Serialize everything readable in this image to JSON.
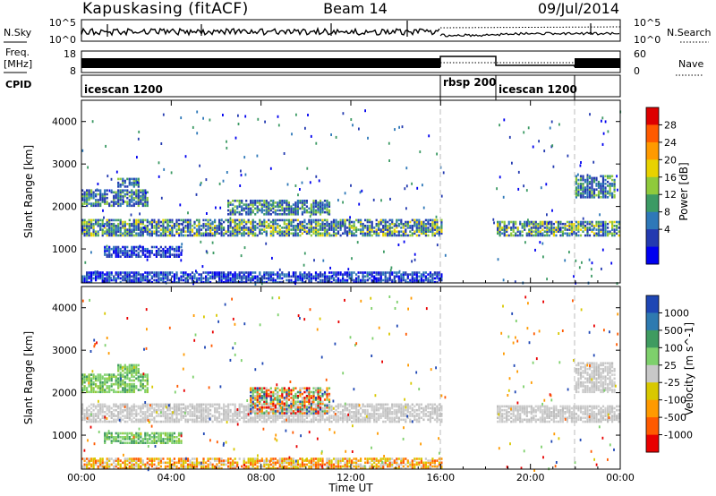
{
  "header": {
    "station": "Kapuskasing (fitACF)",
    "beam": "Beam 14",
    "date": "09/Jul/2014"
  },
  "noise_panel": {
    "left_label": "N.Sky",
    "right_label": "N.Search",
    "left_ticks": [
      "10^5",
      "10^0"
    ],
    "right_ticks": [
      "10^5",
      "10^0"
    ]
  },
  "freq_panel": {
    "left_label_line1": "Freq.",
    "left_label_line2": "[MHz]",
    "left_ticks": [
      "18",
      "8"
    ],
    "right_label": "Nave",
    "right_ticks": [
      "60",
      "0"
    ]
  },
  "cpid_panel": {
    "label": "CPID",
    "segments": [
      {
        "name": "icescan 1200",
        "start_hour": 0,
        "end_hour": 16
      },
      {
        "name": "rbsp 200",
        "start_hour": 16,
        "end_hour": 18.5
      },
      {
        "name": "icescan 1200",
        "start_hour": 18.5,
        "end_hour": 21.8
      }
    ]
  },
  "time_axis": {
    "label": "Time UT",
    "ticks": [
      "00:00",
      "04:00",
      "08:00",
      "12:00",
      "16:00",
      "20:00",
      "00:00"
    ]
  },
  "power_colorbar": {
    "label": "Power [dB]",
    "ticks": [
      "28",
      "24",
      "20",
      "16",
      "12",
      "8",
      "4"
    ],
    "colors": [
      "#dd0000",
      "#ff5a00",
      "#ff9a00",
      "#e8d200",
      "#8fca3c",
      "#3c9a64",
      "#2e78b8",
      "#233ab0",
      "#0000f0"
    ]
  },
  "velocity_colorbar": {
    "label": "Velocity [m s^-1]",
    "ticks": [
      "1000",
      "500",
      "100",
      "25",
      "-25",
      "-100",
      "-500",
      "-1000"
    ],
    "colors": [
      "#1e46b4",
      "#2e7ab0",
      "#3f9b60",
      "#7ed06c",
      "#c8c8c8",
      "#d8c800",
      "#ff9a00",
      "#ff5a00",
      "#e80000"
    ]
  },
  "chart_data": [
    {
      "type": "heatmap",
      "title": "Power",
      "xlabel": "Time UT",
      "ylabel": "Slant Range [km]",
      "xlim_hours": [
        0,
        24
      ],
      "ylim_km": [
        200,
        4500
      ],
      "yticks": [
        "1000",
        "2000",
        "3000",
        "4000"
      ],
      "bands": [
        {
          "t0": 0.0,
          "t1": 16.0,
          "r0": 1300,
          "r1": 1700,
          "level": "high",
          "value_db": 12
        },
        {
          "t0": 0.0,
          "t1": 3.0,
          "r0": 2000,
          "r1": 2400,
          "level": "mid",
          "value_db": 10
        },
        {
          "t0": 1.6,
          "t1": 2.6,
          "r0": 2450,
          "r1": 2650,
          "level": "mid",
          "value_db": 14
        },
        {
          "t0": 1.0,
          "t1": 4.5,
          "r0": 800,
          "r1": 1050,
          "level": "low",
          "value_db": 6
        },
        {
          "t0": 6.5,
          "t1": 11.0,
          "r0": 1800,
          "r1": 2150,
          "level": "mid",
          "value_db": 10
        },
        {
          "t0": 0.0,
          "t1": 16.0,
          "r0": 200,
          "r1": 450,
          "level": "low",
          "value_db": 4
        },
        {
          "t0": 18.5,
          "t1": 24.0,
          "r0": 1300,
          "r1": 1650,
          "level": "high",
          "value_db": 12
        },
        {
          "t0": 22.0,
          "t1": 23.8,
          "r0": 2200,
          "r1": 2700,
          "level": "mid",
          "value_db": 8
        }
      ]
    },
    {
      "type": "heatmap",
      "title": "Velocity",
      "xlabel": "Time UT",
      "ylabel": "Slant Range [km]",
      "xlim_hours": [
        0,
        24
      ],
      "ylim_km": [
        200,
        4500
      ],
      "yticks": [
        "1000",
        "2000",
        "3000",
        "4000"
      ],
      "bands": [
        {
          "t0": 0.0,
          "t1": 16.0,
          "r0": 1300,
          "r1": 1750,
          "level": "ground",
          "value_ms": 0
        },
        {
          "t0": 0.0,
          "t1": 3.0,
          "r0": 2000,
          "r1": 2450,
          "level": "pos",
          "value_ms": 60
        },
        {
          "t0": 1.6,
          "t1": 2.6,
          "r0": 2450,
          "r1": 2650,
          "level": "pos",
          "value_ms": 60
        },
        {
          "t0": 1.0,
          "t1": 4.5,
          "r0": 800,
          "r1": 1050,
          "level": "pos",
          "value_ms": 60
        },
        {
          "t0": 7.5,
          "t1": 11.0,
          "r0": 1500,
          "r1": 2100,
          "level": "mixed",
          "value_ms": 0
        },
        {
          "t0": 0.0,
          "t1": 16.0,
          "r0": 200,
          "r1": 450,
          "level": "neg",
          "value_ms": -100
        },
        {
          "t0": 18.5,
          "t1": 24.0,
          "r0": 1300,
          "r1": 1700,
          "level": "ground",
          "value_ms": 0
        },
        {
          "t0": 22.0,
          "t1": 23.8,
          "r0": 2000,
          "r1": 2700,
          "level": "ground",
          "value_ms": 0
        }
      ]
    }
  ]
}
